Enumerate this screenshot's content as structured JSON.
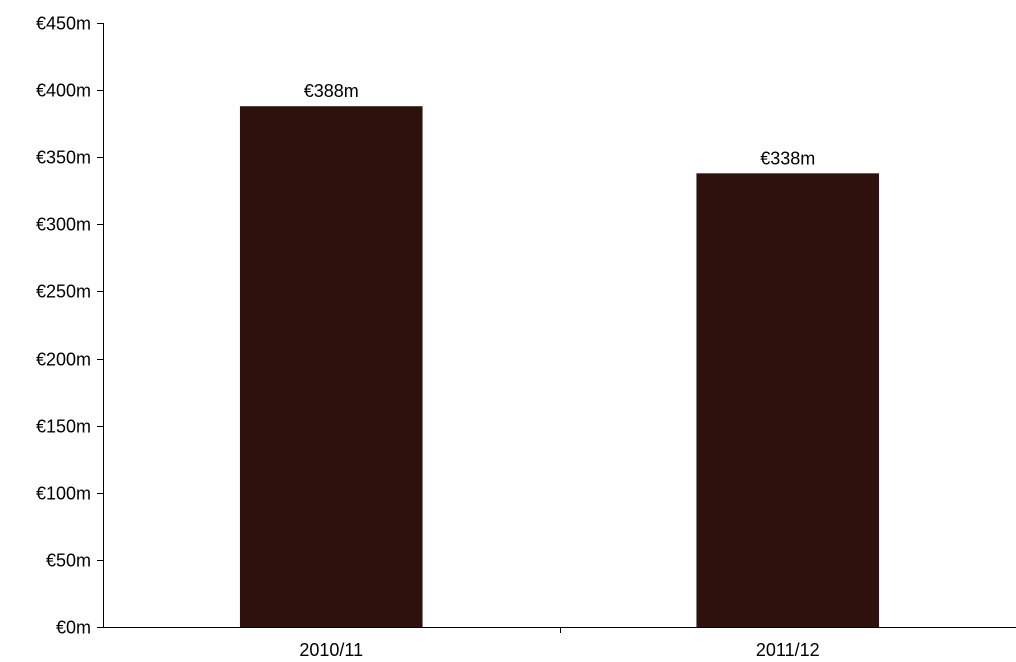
{
  "chart_data": {
    "type": "bar",
    "categories": [
      "2010/11",
      "2011/12"
    ],
    "values": [
      388,
      338
    ],
    "data_labels": [
      "€388m",
      "€338m"
    ],
    "title": "",
    "xlabel": "",
    "ylabel": "",
    "ylim": [
      0,
      450
    ],
    "y_ticks": [
      0,
      50,
      100,
      150,
      200,
      250,
      300,
      350,
      400,
      450
    ],
    "y_tick_labels": [
      "€0m",
      "€50m",
      "€100m",
      "€150m",
      "€200m",
      "€250m",
      "€300m",
      "€350m",
      "€400m",
      "€450m"
    ],
    "bar_color": "#2e110c",
    "grid": false,
    "legend": "none"
  }
}
